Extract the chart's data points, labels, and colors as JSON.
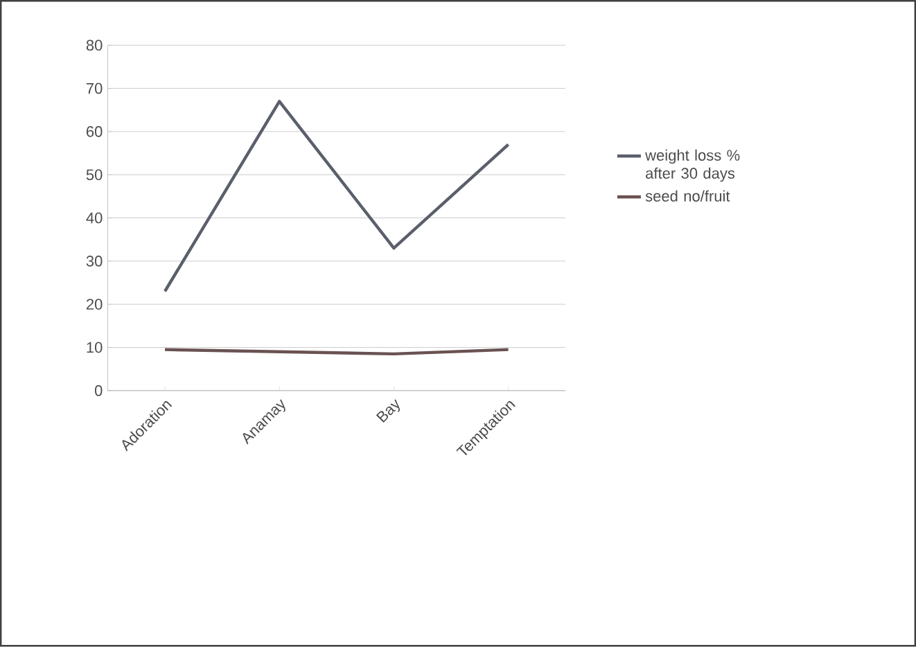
{
  "chart_data": {
    "type": "line",
    "categories": [
      "Adoration",
      "Anamay",
      "Bay",
      "Temptation"
    ],
    "series": [
      {
        "name": "weight loss % after 30 days",
        "color": "#5a5f6b",
        "values": [
          23,
          67,
          33,
          57
        ]
      },
      {
        "name": "seed no/fruit",
        "color": "#6a5252",
        "values": [
          9.5,
          9,
          8.5,
          9.5
        ]
      }
    ],
    "ylim": [
      0,
      80
    ],
    "yticks": [
      0,
      10,
      20,
      30,
      40,
      50,
      60,
      70,
      80
    ],
    "grid": "y",
    "legend": "right",
    "marker": "none",
    "line_style": "solid"
  }
}
